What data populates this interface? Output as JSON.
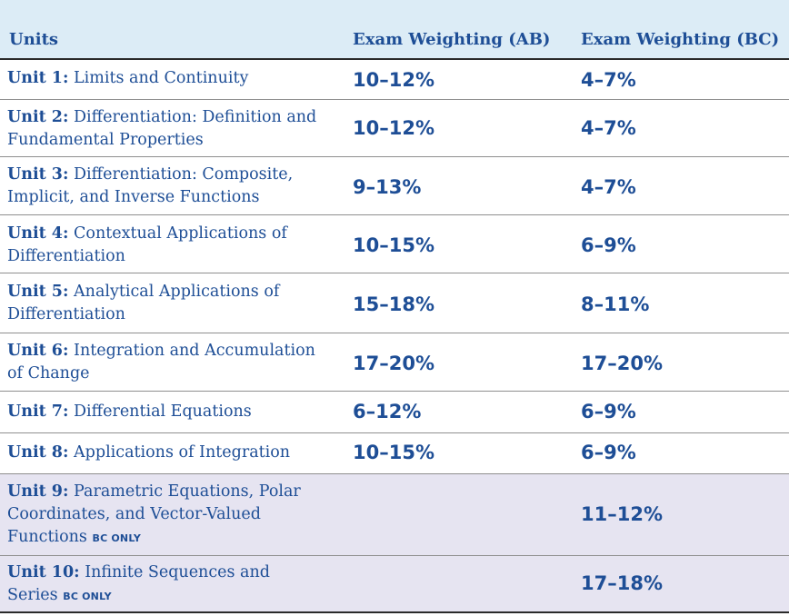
{
  "header": {
    "units": "Units",
    "ab": "Exam Weighting (AB)",
    "bc": "Exam Weighting (BC)"
  },
  "rows": [
    {
      "unit": "Unit 1:",
      "title": "Limits and Continuity",
      "bc_only": "",
      "ab": "10–12%",
      "bc": "4–7%"
    },
    {
      "unit": "Unit 2:",
      "title": "Differentiation: Definition and Fundamental Properties",
      "bc_only": "",
      "ab": "10–12%",
      "bc": "4–7%"
    },
    {
      "unit": "Unit 3:",
      "title": "Differentiation: Composite, Implicit, and Inverse Functions",
      "bc_only": "",
      "ab": "9–13%",
      "bc": "4–7%"
    },
    {
      "unit": "Unit 4:",
      "title": "Contextual Applications of Differentiation",
      "bc_only": "",
      "ab": "10–15%",
      "bc": "6–9%"
    },
    {
      "unit": "Unit 5:",
      "title": "Analytical Applications of Differentiation",
      "bc_only": "",
      "ab": "15–18%",
      "bc": "8–11%"
    },
    {
      "unit": "Unit 6:",
      "title": "Integration and Accumulation of Change",
      "bc_only": "",
      "ab": "17–20%",
      "bc": "17–20%"
    },
    {
      "unit": "Unit 7:",
      "title": "Differential Equations",
      "bc_only": "",
      "ab": "6–12%",
      "bc": "6–9%"
    },
    {
      "unit": "Unit 8:",
      "title": "Applications of Integration",
      "bc_only": "",
      "ab": "10–15%",
      "bc": "6–9%"
    },
    {
      "unit": "Unit 9:",
      "title": "Parametric Equations, Polar Coordinates, and Vector-Valued Functions",
      "bc_only": "BC ONLY",
      "ab": "",
      "bc": "11–12%"
    },
    {
      "unit": "Unit 10:",
      "title": "Infinite Sequences and Series",
      "bc_only": "BC ONLY",
      "ab": "",
      "bc": "17–18%"
    }
  ]
}
